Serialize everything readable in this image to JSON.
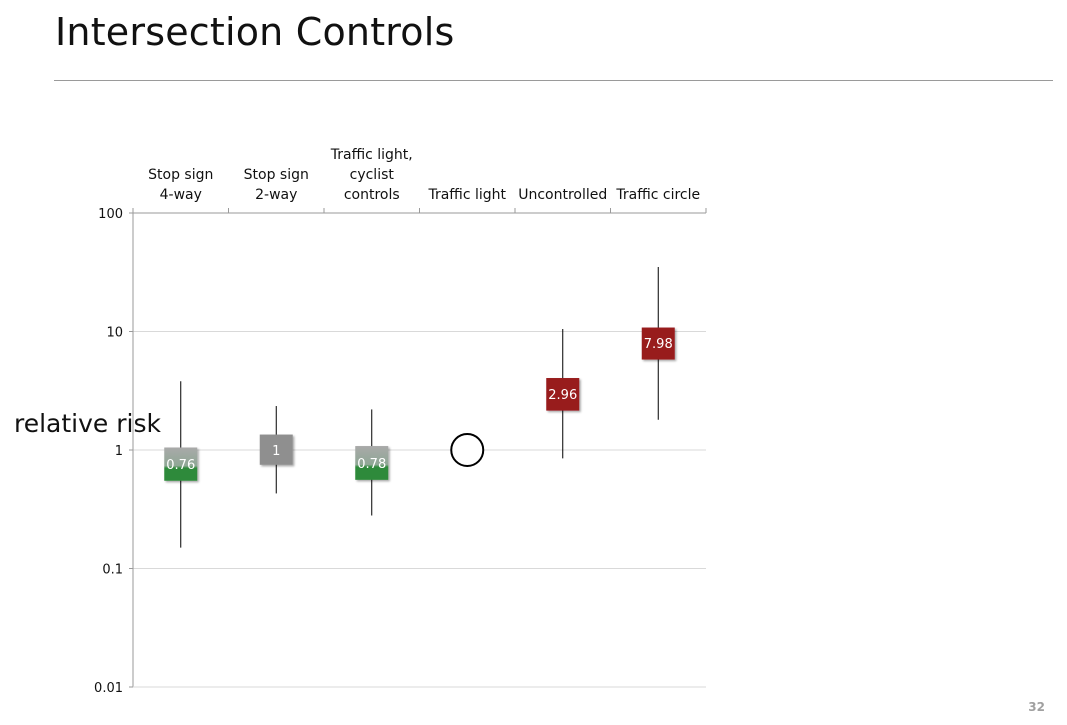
{
  "slide": {
    "title": "Intersection Controls",
    "page_number": "32"
  },
  "chart_data": {
    "type": "box",
    "yscale": "log",
    "ylim": [
      0.01,
      100
    ],
    "yticks": [
      {
        "value": 100,
        "label": "100"
      },
      {
        "value": 10,
        "label": "10"
      },
      {
        "value": 1,
        "label": "1"
      },
      {
        "value": 0.1,
        "label": "0.1"
      },
      {
        "value": 0.01,
        "label": "0.01"
      }
    ],
    "ylabel": "relative risk",
    "xaxis_position": "top",
    "categories": [
      {
        "lines": [
          "Stop sign",
          "4-way"
        ]
      },
      {
        "lines": [
          "Stop sign",
          "2-way"
        ]
      },
      {
        "lines": [
          "Traffic light,",
          "cyclist",
          "controls"
        ]
      },
      {
        "lines": [
          "Traffic light"
        ]
      },
      {
        "lines": [
          "Uncontrolled"
        ]
      },
      {
        "lines": [
          "Traffic circle"
        ]
      }
    ],
    "series": [
      {
        "category": "Stop sign 4-way",
        "estimate": 0.76,
        "label": "0.76",
        "ci_low": 0.15,
        "ci_high": 3.8,
        "box_low": 0.55,
        "box_high": 1.05,
        "style": "green"
      },
      {
        "category": "Stop sign 2-way",
        "estimate": 1,
        "label": "1",
        "ci_low": 0.43,
        "ci_high": 2.35,
        "box_low": 0.75,
        "box_high": 1.35,
        "style": "gray"
      },
      {
        "category": "Traffic light, cyclist controls",
        "estimate": 0.78,
        "label": "0.78",
        "ci_low": 0.28,
        "ci_high": 2.2,
        "box_low": 0.56,
        "box_high": 1.08,
        "style": "green"
      },
      {
        "category": "Traffic light",
        "estimate": 1,
        "label": "",
        "style": "reference"
      },
      {
        "category": "Uncontrolled",
        "estimate": 2.96,
        "label": "2.96",
        "ci_low": 0.85,
        "ci_high": 10.5,
        "box_low": 2.15,
        "box_high": 4.05,
        "style": "red"
      },
      {
        "category": "Traffic circle",
        "estimate": 7.98,
        "label": "7.98",
        "ci_low": 1.8,
        "ci_high": 35,
        "box_low": 5.8,
        "box_high": 10.8,
        "style": "red"
      }
    ],
    "colors": {
      "grid": "#d9d9d9",
      "axis": "#9a9a9a",
      "whisker": "#000000",
      "green_top": "#a9a9a9",
      "green_bottom": "#2f8a3a",
      "gray": "#8f8f8f",
      "red": "#981b1e",
      "box_text": "#ffffff"
    }
  }
}
